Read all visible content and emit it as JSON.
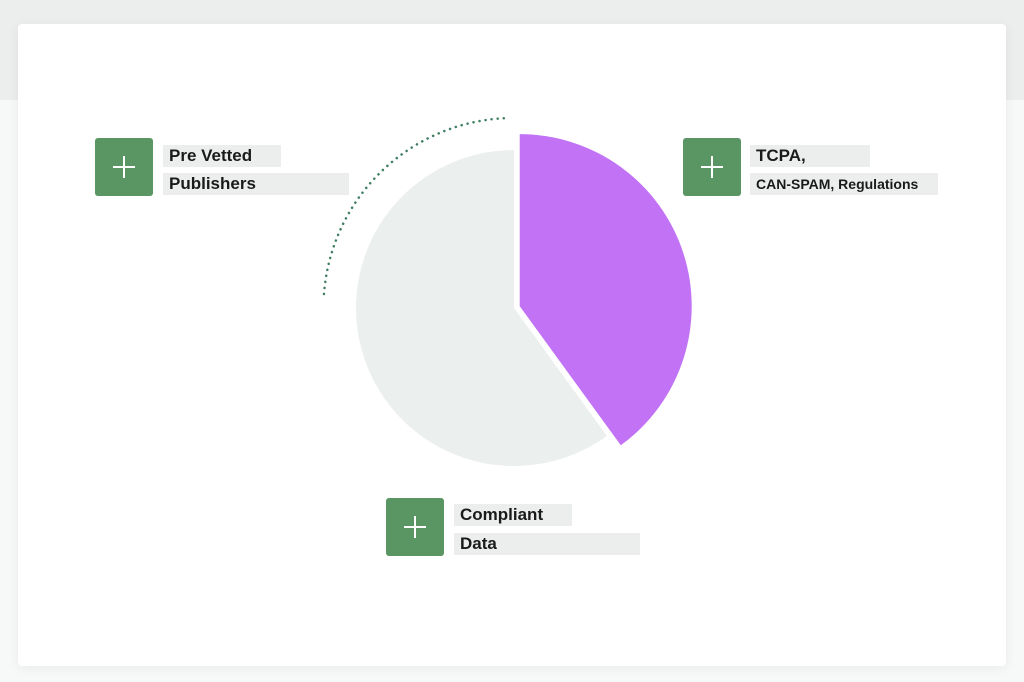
{
  "colors": {
    "accent_green": "#5a9564",
    "pie_highlight": "#c172f5",
    "pie_rest": "#ebefed",
    "dotted_arc": "#3f7f61",
    "label_bg": "#eceeee"
  },
  "chart_data": {
    "type": "pie",
    "slices": [
      {
        "value": 40,
        "color": "#c172f5",
        "highlighted": true
      },
      {
        "value": 60,
        "color": "#ebefed",
        "highlighted": false
      }
    ]
  },
  "callouts": {
    "left": {
      "icon": "plus-icon",
      "line1": "Pre Vetted",
      "line2": "Publishers"
    },
    "right": {
      "icon": "plus-icon",
      "line1": "TCPA,",
      "line2": "CAN-SPAM, Regulations"
    },
    "bottom": {
      "icon": "plus-icon",
      "line1": "Compliant",
      "line2": "Data"
    }
  }
}
